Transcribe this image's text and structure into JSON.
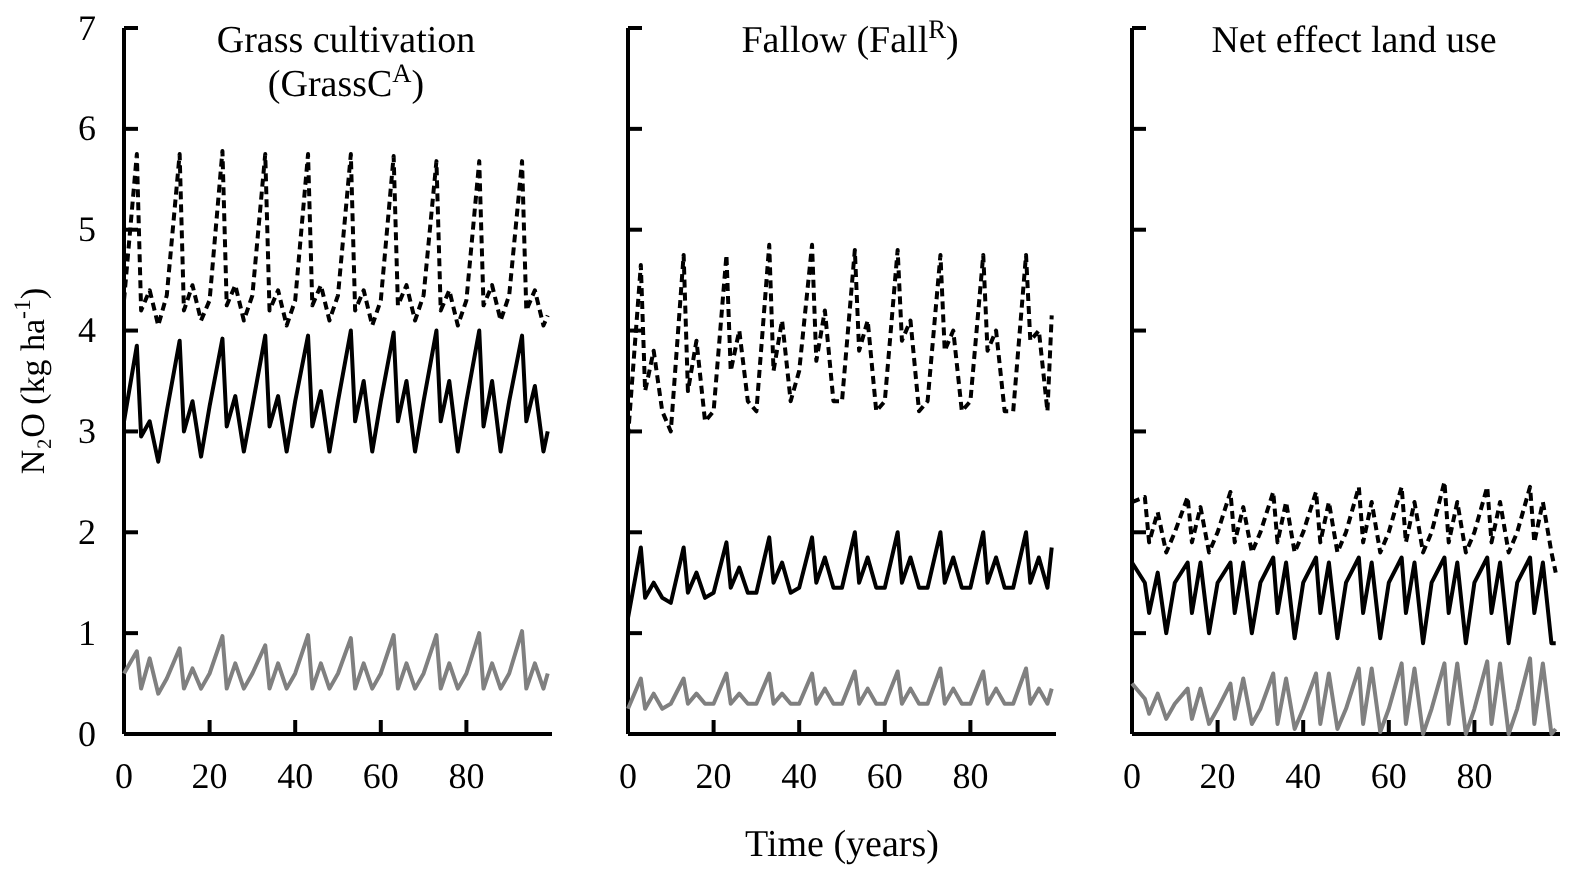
{
  "chart_data": [
    {
      "type": "line",
      "title": "Grass cultivation (GrassC$^{A}$)",
      "ylabel": "N₂O (kg ha$^{-1}$)",
      "x": [
        0,
        3,
        4,
        6,
        8,
        10,
        13,
        14,
        16,
        18,
        20,
        23,
        24,
        26,
        28,
        30,
        33,
        34,
        36,
        38,
        40,
        43,
        44,
        46,
        48,
        50,
        53,
        54,
        56,
        58,
        60,
        63,
        64,
        66,
        68,
        70,
        73,
        74,
        76,
        78,
        80,
        83,
        84,
        86,
        88,
        90,
        93,
        94,
        96,
        98,
        99
      ],
      "xlim": [
        0,
        100
      ],
      "xticks": [
        0,
        20,
        40,
        60,
        80
      ],
      "ylim": [
        0,
        7
      ],
      "yticks": [
        0,
        1,
        2,
        3,
        4,
        5,
        6,
        7
      ],
      "grid": false,
      "series": [
        {
          "color": "#000000",
          "line_style": "dashed",
          "values": [
            4.3,
            5.75,
            4.2,
            4.4,
            4.05,
            4.35,
            5.75,
            4.2,
            4.45,
            4.1,
            4.3,
            5.78,
            4.25,
            4.45,
            4.1,
            4.35,
            5.75,
            4.2,
            4.4,
            4.05,
            4.3,
            5.75,
            4.25,
            4.45,
            4.1,
            4.35,
            5.75,
            4.2,
            4.4,
            4.05,
            4.3,
            5.73,
            4.25,
            4.45,
            4.1,
            4.35,
            5.68,
            4.2,
            4.4,
            4.05,
            4.3,
            5.68,
            4.25,
            4.45,
            4.1,
            4.35,
            5.68,
            4.2,
            4.4,
            4.05,
            4.15
          ]
        },
        {
          "color": "#000000",
          "line_style": "solid",
          "values": [
            3.1,
            3.85,
            2.95,
            3.1,
            2.7,
            3.2,
            3.9,
            3.0,
            3.3,
            2.75,
            3.25,
            3.92,
            3.05,
            3.35,
            2.8,
            3.25,
            3.95,
            3.05,
            3.35,
            2.8,
            3.3,
            3.95,
            3.05,
            3.4,
            2.8,
            3.3,
            4.0,
            3.1,
            3.5,
            2.8,
            3.3,
            3.98,
            3.1,
            3.5,
            2.8,
            3.3,
            4.0,
            3.1,
            3.5,
            2.8,
            3.3,
            4.0,
            3.05,
            3.5,
            2.8,
            3.3,
            3.95,
            3.1,
            3.45,
            2.8,
            3.0
          ]
        },
        {
          "color": "#808080",
          "line_style": "solid",
          "values": [
            0.6,
            0.82,
            0.45,
            0.75,
            0.4,
            0.55,
            0.85,
            0.45,
            0.65,
            0.45,
            0.6,
            0.97,
            0.45,
            0.7,
            0.45,
            0.6,
            0.88,
            0.45,
            0.7,
            0.45,
            0.6,
            0.98,
            0.45,
            0.7,
            0.45,
            0.6,
            0.95,
            0.45,
            0.7,
            0.45,
            0.6,
            0.98,
            0.45,
            0.7,
            0.45,
            0.6,
            0.98,
            0.45,
            0.7,
            0.45,
            0.6,
            1.0,
            0.45,
            0.7,
            0.45,
            0.6,
            1.02,
            0.45,
            0.7,
            0.45,
            0.6
          ]
        }
      ]
    },
    {
      "type": "line",
      "title": "Fallow (Fall$^{R}$)",
      "xlabel": "Time (years)",
      "tick_labels": "x",
      "x": [
        0,
        3,
        4,
        6,
        8,
        10,
        13,
        14,
        16,
        18,
        20,
        23,
        24,
        26,
        28,
        30,
        33,
        34,
        36,
        38,
        40,
        43,
        44,
        46,
        48,
        50,
        53,
        54,
        56,
        58,
        60,
        63,
        64,
        66,
        68,
        70,
        73,
        74,
        76,
        78,
        80,
        83,
        84,
        86,
        88,
        90,
        93,
        94,
        96,
        98,
        99
      ],
      "xlim": [
        0,
        100
      ],
      "xticks": [
        0,
        20,
        40,
        60,
        80
      ],
      "ylim": [
        0,
        7
      ],
      "yticks": [
        0,
        1,
        2,
        3,
        4,
        5,
        6,
        7
      ],
      "grid": false,
      "series": [
        {
          "color": "#000000",
          "line_style": "dashed",
          "values": [
            2.95,
            4.65,
            3.4,
            3.8,
            3.2,
            3.0,
            4.75,
            3.4,
            3.9,
            3.1,
            3.2,
            4.75,
            3.6,
            4.0,
            3.3,
            3.2,
            4.85,
            3.6,
            4.1,
            3.3,
            3.6,
            4.85,
            3.7,
            4.2,
            3.3,
            3.3,
            4.8,
            3.8,
            4.1,
            3.2,
            3.3,
            4.8,
            3.9,
            4.1,
            3.2,
            3.3,
            4.75,
            3.8,
            4.0,
            3.2,
            3.3,
            4.75,
            3.8,
            4.0,
            3.2,
            3.2,
            4.75,
            3.9,
            4.0,
            3.2,
            4.15
          ]
        },
        {
          "color": "#000000",
          "line_style": "solid",
          "values": [
            1.15,
            1.85,
            1.35,
            1.5,
            1.35,
            1.3,
            1.85,
            1.4,
            1.6,
            1.35,
            1.4,
            1.9,
            1.45,
            1.65,
            1.4,
            1.4,
            1.95,
            1.5,
            1.7,
            1.4,
            1.45,
            1.95,
            1.5,
            1.75,
            1.45,
            1.45,
            2.0,
            1.5,
            1.75,
            1.45,
            1.45,
            2.0,
            1.5,
            1.75,
            1.45,
            1.45,
            2.0,
            1.5,
            1.75,
            1.45,
            1.45,
            2.0,
            1.5,
            1.75,
            1.45,
            1.45,
            2.0,
            1.5,
            1.75,
            1.45,
            1.85
          ]
        },
        {
          "color": "#808080",
          "line_style": "solid",
          "values": [
            0.25,
            0.55,
            0.25,
            0.4,
            0.25,
            0.3,
            0.55,
            0.3,
            0.4,
            0.3,
            0.3,
            0.6,
            0.3,
            0.4,
            0.3,
            0.3,
            0.6,
            0.3,
            0.4,
            0.3,
            0.3,
            0.6,
            0.3,
            0.45,
            0.3,
            0.3,
            0.62,
            0.3,
            0.45,
            0.3,
            0.3,
            0.62,
            0.3,
            0.45,
            0.3,
            0.3,
            0.65,
            0.3,
            0.45,
            0.3,
            0.3,
            0.62,
            0.3,
            0.45,
            0.3,
            0.3,
            0.65,
            0.3,
            0.45,
            0.3,
            0.45
          ]
        }
      ]
    },
    {
      "type": "line",
      "title": "Net effect land use",
      "tick_labels": "x",
      "x": [
        0,
        3,
        4,
        6,
        8,
        10,
        13,
        14,
        16,
        18,
        20,
        23,
        24,
        26,
        28,
        30,
        33,
        34,
        36,
        38,
        40,
        43,
        44,
        46,
        48,
        50,
        53,
        54,
        56,
        58,
        60,
        63,
        64,
        66,
        68,
        70,
        73,
        74,
        76,
        78,
        80,
        83,
        84,
        86,
        88,
        90,
        93,
        94,
        96,
        98,
        99
      ],
      "xlim": [
        0,
        100
      ],
      "xticks": [
        0,
        20,
        40,
        60,
        80
      ],
      "ylim": [
        0,
        7
      ],
      "yticks": [
        0,
        1,
        2,
        3,
        4,
        5,
        6,
        7
      ],
      "grid": false,
      "series": [
        {
          "color": "#000000",
          "line_style": "dashed",
          "values": [
            2.3,
            2.35,
            1.9,
            2.2,
            1.8,
            2.0,
            2.35,
            1.9,
            2.25,
            1.8,
            2.0,
            2.4,
            1.9,
            2.25,
            1.8,
            2.0,
            2.4,
            1.9,
            2.3,
            1.8,
            2.0,
            2.4,
            1.9,
            2.3,
            1.8,
            2.0,
            2.45,
            1.9,
            2.3,
            1.8,
            2.0,
            2.45,
            1.9,
            2.3,
            1.8,
            2.0,
            2.5,
            1.9,
            2.3,
            1.8,
            2.0,
            2.45,
            1.9,
            2.3,
            1.8,
            2.0,
            2.45,
            1.9,
            2.3,
            1.8,
            1.6
          ]
        },
        {
          "color": "#000000",
          "line_style": "solid",
          "values": [
            1.7,
            1.5,
            1.2,
            1.6,
            1.0,
            1.5,
            1.7,
            1.2,
            1.7,
            1.0,
            1.5,
            1.7,
            1.2,
            1.7,
            1.0,
            1.5,
            1.75,
            1.2,
            1.7,
            0.95,
            1.5,
            1.75,
            1.2,
            1.7,
            0.95,
            1.5,
            1.75,
            1.2,
            1.7,
            0.95,
            1.5,
            1.75,
            1.2,
            1.7,
            0.9,
            1.5,
            1.75,
            1.2,
            1.7,
            0.9,
            1.5,
            1.75,
            1.2,
            1.7,
            0.9,
            1.5,
            1.75,
            1.2,
            1.7,
            0.9,
            0.9
          ]
        },
        {
          "color": "#808080",
          "line_style": "solid",
          "values": [
            0.5,
            0.35,
            0.2,
            0.4,
            0.15,
            0.3,
            0.45,
            0.15,
            0.45,
            0.1,
            0.25,
            0.5,
            0.15,
            0.55,
            0.1,
            0.25,
            0.6,
            0.1,
            0.55,
            0.05,
            0.25,
            0.6,
            0.1,
            0.6,
            0.05,
            0.25,
            0.65,
            0.1,
            0.65,
            0.02,
            0.25,
            0.7,
            0.1,
            0.65,
            0.0,
            0.25,
            0.7,
            0.1,
            0.7,
            0.0,
            0.25,
            0.72,
            0.1,
            0.7,
            0.0,
            0.25,
            0.75,
            0.1,
            0.7,
            0.0,
            0.05
          ]
        }
      ]
    }
  ]
}
